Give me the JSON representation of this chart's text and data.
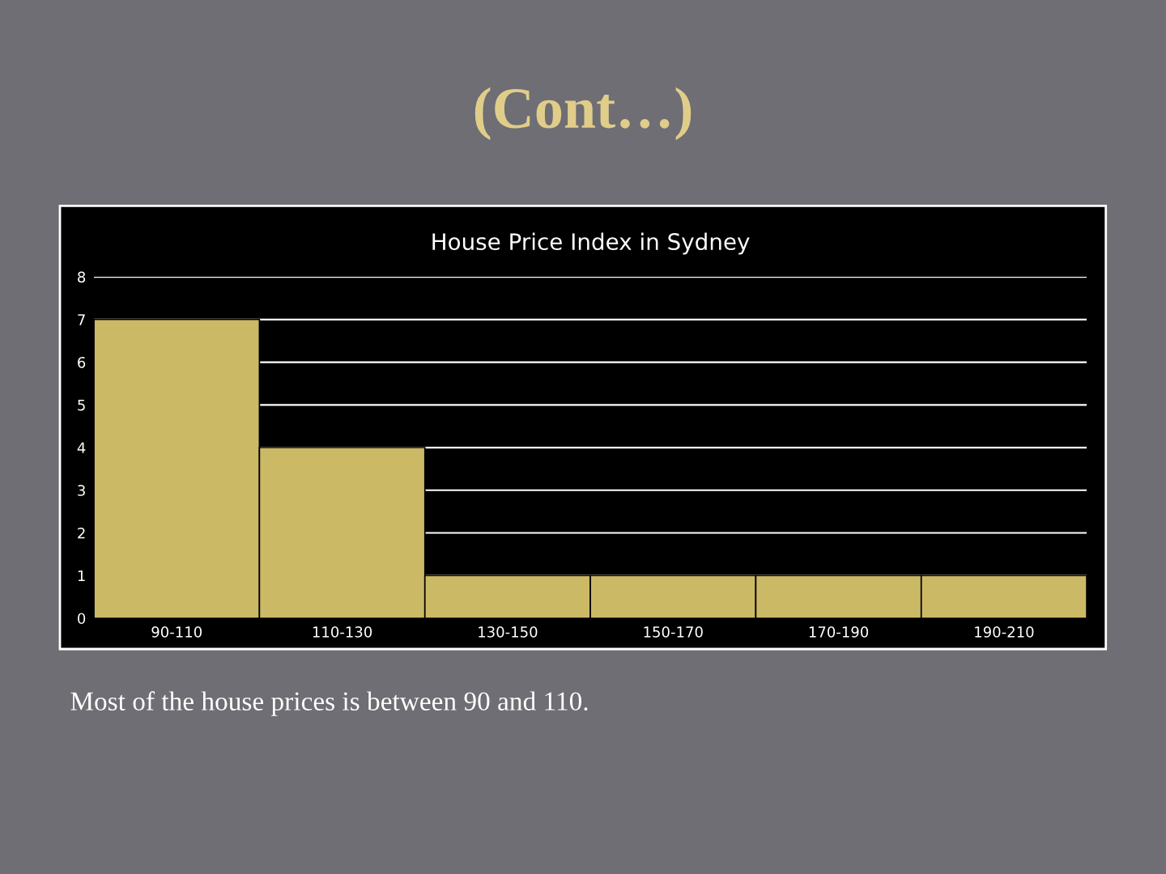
{
  "chart_data": {
    "type": "bar",
    "title": "House Price Index in Sydney",
    "categories": [
      "90-110",
      "110-130",
      "130-150",
      "150-170",
      "170-190",
      "190-210"
    ],
    "values": [
      7,
      4,
      1,
      1,
      1,
      1
    ],
    "color": "#cbb966",
    "ylim": [
      0,
      8
    ],
    "yticks": [
      0,
      1,
      2,
      3,
      4,
      5,
      6,
      7,
      8
    ],
    "grid": "y",
    "legend": false,
    "annotations": [
      "(Cont…)",
      "Most of the house prices is between 90 and 110."
    ]
  }
}
